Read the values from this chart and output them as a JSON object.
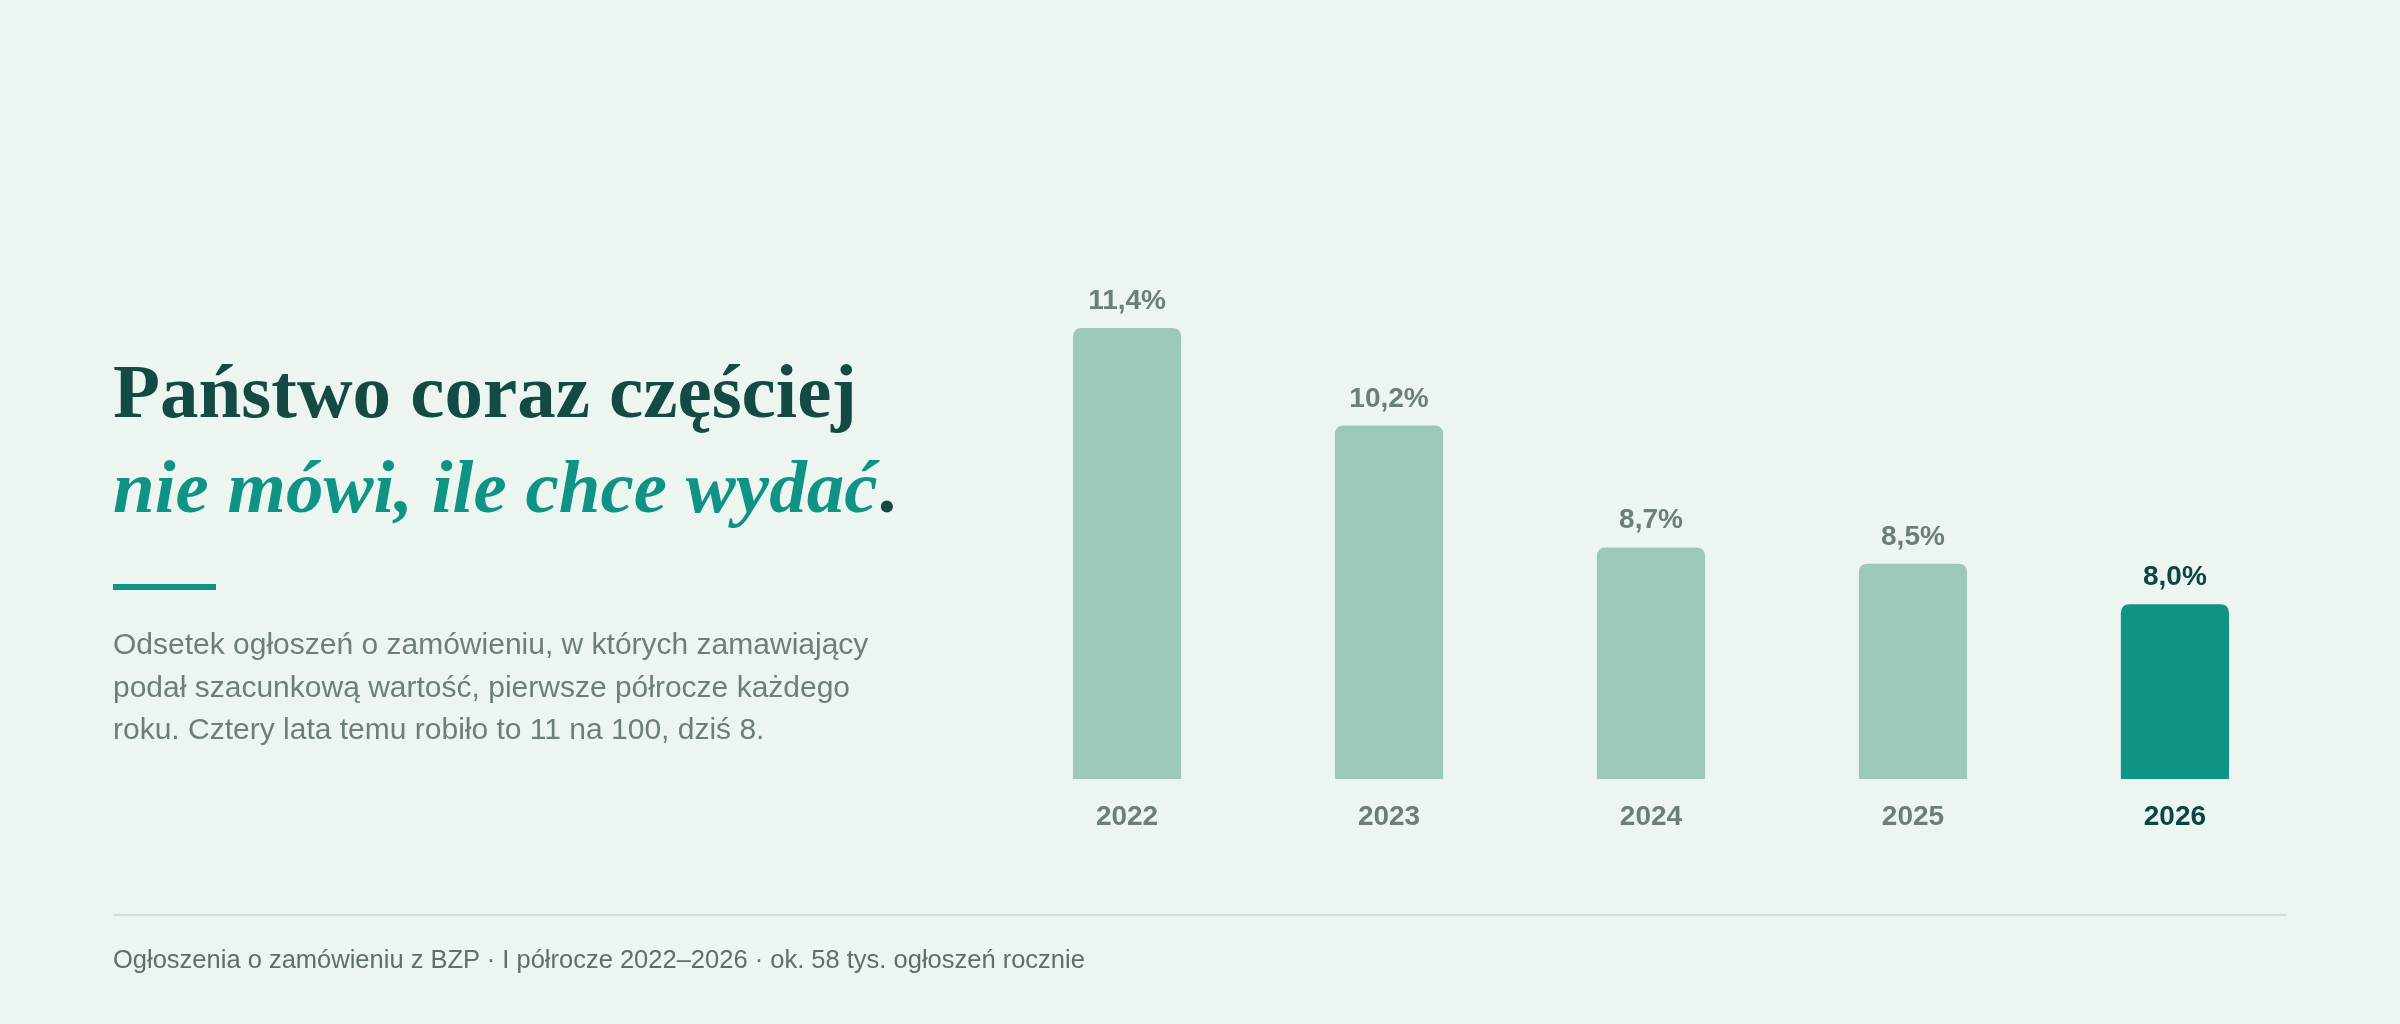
{
  "chart_data": {
    "type": "bar",
    "title": "Państwo coraz częściej\nnie mówi, ile chce wydać.",
    "subtitle": "Odsetek ogłoszeń o zamówieniu, w których zamawiający podał szacunkową wartość, pierwsze półrocze każdego roku. Cztery lata temu robiło to 11 na 100, dziś 8.",
    "annotations": [
      "Ogłoszenia o zamówieniu z BZP · I półrocze 2022–2026 · ok. 58 tys. ogłoszeń rocznie"
    ],
    "categories": [
      "2022",
      "2023",
      "2024",
      "2025",
      "2026"
    ],
    "values": [
      11.4,
      10.2,
      8.7,
      8.5,
      8.0
    ],
    "colors": [
      "#9cc9b7",
      "#9cc9b7",
      "#9cc9b7",
      "#9cc9b7",
      "#0e9384"
    ],
    "value_labels": [
      "11,4%",
      "10,2%",
      "8,7%",
      "8,5%",
      "8,0%"
    ],
    "ylim": [
      5.85,
      11.4
    ],
    "tick_labels": "x"
  }
}
